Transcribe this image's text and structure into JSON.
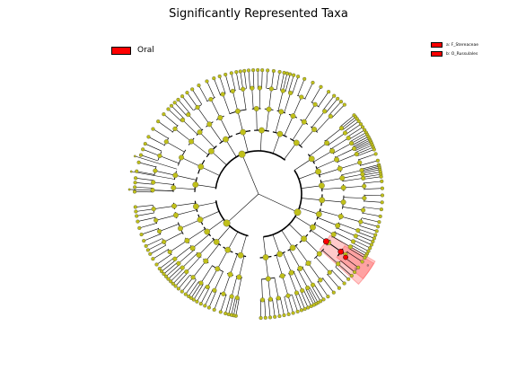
{
  "title": "Significantly Represented Taxa",
  "legend": {
    "group_label": "Oral",
    "group_color": "#ff0000",
    "taxa": [
      {
        "label": "a: F_Stereaceae",
        "color": "#ff0000"
      },
      {
        "label": "b: O_Russulales",
        "color": "#ff0000"
      }
    ]
  },
  "colors": {
    "node_default": "#c0c01a",
    "node_highlight": "#ff0000",
    "branch": "#000000",
    "highlight_fill": "#ff6666"
  },
  "clade_labels": [
    "a",
    "b"
  ]
}
